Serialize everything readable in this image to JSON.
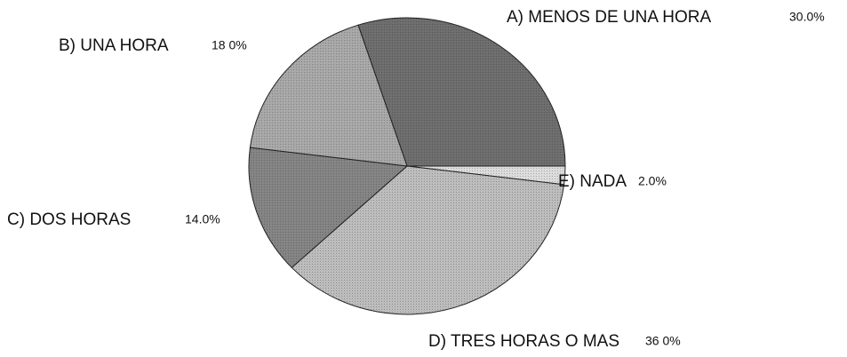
{
  "chart_data": {
    "type": "pie",
    "categories": [
      "A) MENOS DE UNA HORA",
      "E) NADA",
      "D) TRES HORAS O MAS",
      "C) DOS HORAS",
      "B) UNA HORA"
    ],
    "values": [
      30,
      2,
      36,
      14,
      18
    ],
    "value_labels": [
      "30.0%",
      "2.0%",
      "36 0%",
      "14.0%",
      "18 0%"
    ],
    "colors": [
      "#6f6f6f",
      "#dcdcdc",
      "#bdbdbd",
      "#858585",
      "#a9a9a9"
    ]
  }
}
